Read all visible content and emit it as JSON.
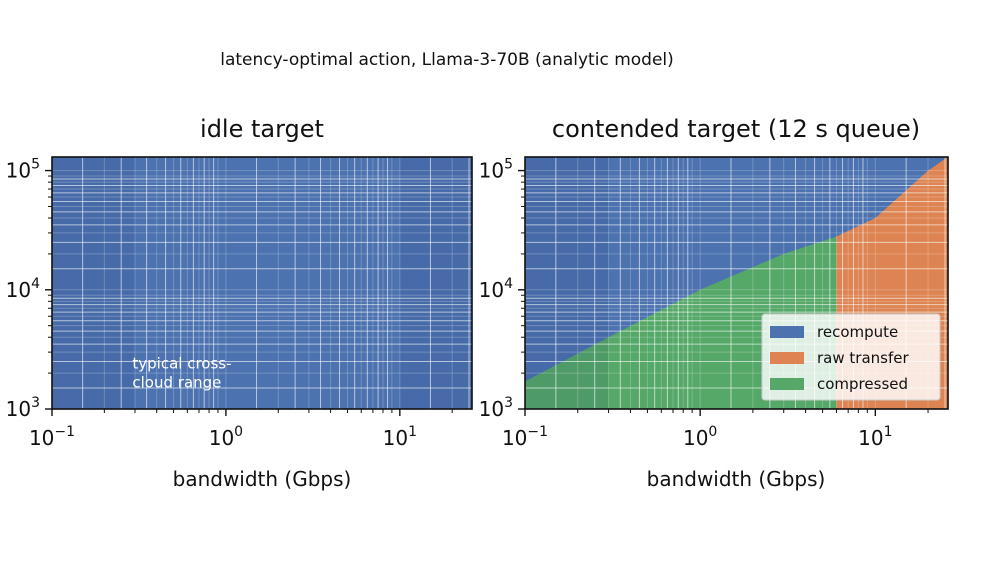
{
  "figure": {
    "suptitle": "latency-optimal action, Llama-3-70B (analytic model)"
  },
  "colors": {
    "recompute": "#4c72b0",
    "raw_transfer": "#dd8452",
    "compressed": "#55a868",
    "band_shade": "#3d66aa"
  },
  "chart_data": [
    {
      "type": "heatmap",
      "title": "idle target",
      "xlabel": "bandwidth (Gbps)",
      "ylabel": "",
      "xscale": "log",
      "yscale": "log",
      "xlim": [
        0.1,
        26
      ],
      "ylim": [
        1000,
        130000
      ],
      "x_ticks": [
        {
          "base": "10",
          "exp": "−1",
          "value": 0.1
        },
        {
          "base": "10",
          "exp": "0",
          "value": 1
        },
        {
          "base": "10",
          "exp": "1",
          "value": 10
        }
      ],
      "y_ticks": [
        {
          "base": "10",
          "exp": "3",
          "value": 1000
        },
        {
          "base": "10",
          "exp": "4",
          "value": 10000
        },
        {
          "base": "10",
          "exp": "5",
          "value": 100000
        }
      ],
      "grid": true,
      "regions": [
        {
          "action": "recompute",
          "description": "entire domain"
        }
      ],
      "shaded_bands": [
        [
          0.1,
          0.3
        ],
        [
          10,
          26
        ]
      ],
      "annotation": {
        "lines": [
          "typical cross-",
          "cloud range"
        ],
        "x": 0.42,
        "y": 1800
      }
    },
    {
      "type": "heatmap",
      "title": "contended target (12 s queue)",
      "xlabel": "bandwidth (Gbps)",
      "ylabel": "",
      "xscale": "log",
      "yscale": "log",
      "xlim": [
        0.1,
        26
      ],
      "ylim": [
        1000,
        130000
      ],
      "x_ticks": [
        {
          "base": "10",
          "exp": "−1",
          "value": 0.1
        },
        {
          "base": "10",
          "exp": "0",
          "value": 1
        },
        {
          "base": "10",
          "exp": "1",
          "value": 10
        }
      ],
      "y_ticks": [
        {
          "base": "10",
          "exp": "3",
          "value": 1000
        },
        {
          "base": "10",
          "exp": "4",
          "value": 10000
        },
        {
          "base": "10",
          "exp": "5",
          "value": 100000
        }
      ],
      "grid": true,
      "boundary_recompute_compressed": {
        "x": [
          0.1,
          0.3,
          1,
          3,
          6
        ],
        "y": [
          1700,
          4000,
          10000,
          20000,
          28000
        ]
      },
      "boundary_raw_transfer": {
        "x": [
          6,
          6,
          10,
          20,
          26
        ],
        "y": [
          1000,
          28000,
          40000,
          100000,
          130000
        ]
      },
      "shaded_bands": [
        [
          0.1,
          0.3
        ]
      ],
      "legend": {
        "placement": "lower-right",
        "entries": [
          {
            "label": "recompute",
            "color_key": "recompute"
          },
          {
            "label": "raw transfer",
            "color_key": "raw_transfer"
          },
          {
            "label": "compressed",
            "color_key": "compressed"
          }
        ]
      }
    }
  ]
}
